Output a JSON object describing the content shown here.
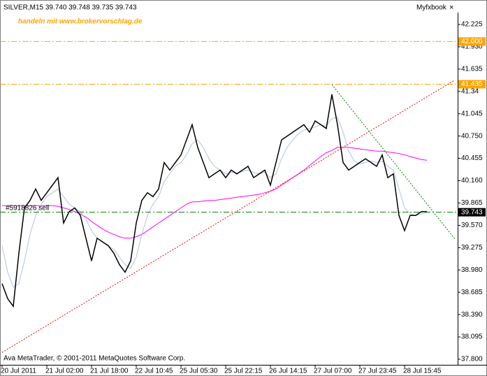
{
  "chart_data": {
    "type": "line",
    "title": "SILVER,M15  39.740 39.748 39.735 39.743",
    "subtitle": "handeln mit www.brokervorschlag.de",
    "indicator": "Myfxbook",
    "close_button": "×",
    "footer": "Ava MetaTrader, © 2001-2011 MetaQuotes Software Corp.",
    "categories": [
      "20 Jul 2011",
      null,
      null,
      null,
      null,
      null,
      null,
      null,
      "21 Jul 02:00",
      null,
      null,
      null,
      null,
      null,
      null,
      null,
      "21 Jul 18:00",
      null,
      null,
      null,
      null,
      null,
      null,
      null,
      "22 Jul 10:45",
      null,
      null,
      null,
      null,
      null,
      null,
      null,
      "25 Jul 05:30",
      null,
      null,
      null,
      null,
      null,
      null,
      null,
      "25 Jul 22:15",
      null,
      null,
      null,
      null,
      null,
      null,
      null,
      "26 Jul 14:15",
      null,
      null,
      null,
      null,
      null,
      null,
      null,
      "27 Jul 07:00",
      null,
      null,
      null,
      null,
      null,
      null,
      null,
      "27 Jul 23:45",
      null,
      null,
      null,
      null,
      null,
      null,
      null,
      "28 Jul 15:45",
      null,
      null,
      null,
      null,
      null,
      null,
      null,
      null,
      null
    ],
    "series": [
      {
        "color": "#000000",
        "values": [
          38.8,
          38.6,
          38.5,
          39.2,
          39.8,
          39.9,
          40.05,
          39.9,
          40.0,
          40.1,
          40.2,
          39.6,
          39.75,
          39.8,
          39.7,
          39.4,
          39.1,
          39.4,
          39.35,
          39.3,
          39.2,
          39.05,
          38.95,
          39.1,
          39.6,
          39.9,
          40.0,
          39.95,
          40.05,
          40.4,
          40.3,
          40.4,
          40.5,
          40.7,
          40.9,
          40.6,
          40.4,
          40.2,
          40.25,
          40.3,
          40.2,
          40.3,
          40.25,
          40.3,
          40.35,
          40.2,
          40.25,
          40.3,
          40.1,
          40.4,
          40.7,
          40.75,
          40.8,
          40.85,
          40.9,
          40.8,
          40.95,
          40.9,
          40.85,
          41.3,
          40.9,
          40.4,
          40.3,
          40.35,
          40.4,
          40.45,
          40.4,
          40.35,
          40.5,
          40.2,
          40.25,
          39.7,
          39.5,
          39.7,
          39.7,
          39.75,
          39.75,
          null,
          null,
          null,
          null,
          null
        ]
      },
      {
        "color": "#b0c4de",
        "values": [
          39.3,
          38.95,
          38.75,
          38.8,
          39.1,
          39.45,
          39.7,
          39.85,
          39.95,
          40.0,
          40.05,
          39.95,
          39.85,
          39.8,
          39.75,
          39.65,
          39.5,
          39.4,
          39.35,
          39.3,
          39.25,
          39.15,
          39.05,
          39.0,
          39.15,
          39.45,
          39.7,
          39.85,
          39.95,
          40.15,
          40.25,
          40.35,
          40.4,
          40.5,
          40.65,
          40.7,
          40.6,
          40.45,
          40.35,
          40.3,
          40.25,
          40.27,
          40.26,
          40.28,
          40.3,
          40.27,
          40.25,
          40.27,
          40.2,
          40.25,
          40.45,
          40.6,
          40.7,
          40.78,
          40.83,
          40.85,
          40.87,
          40.9,
          40.88,
          40.98,
          41.0,
          40.8,
          40.55,
          40.42,
          40.38,
          40.4,
          40.42,
          40.4,
          40.42,
          40.35,
          40.3,
          40.05,
          39.8,
          39.72,
          39.7,
          39.72,
          39.74,
          null,
          null,
          null,
          null,
          null
        ]
      },
      {
        "color": "#ff00ff",
        "values": [
          39.83,
          39.83,
          39.83,
          39.83,
          39.83,
          39.83,
          39.83,
          39.83,
          39.83,
          39.83,
          39.82,
          39.8,
          39.78,
          39.75,
          39.72,
          39.68,
          39.62,
          39.57,
          39.52,
          39.48,
          39.45,
          39.42,
          39.4,
          39.4,
          39.42,
          39.45,
          39.5,
          39.55,
          39.6,
          39.65,
          39.7,
          39.75,
          39.8,
          39.85,
          39.88,
          39.88,
          39.89,
          39.9,
          39.9,
          39.91,
          39.92,
          39.93,
          39.94,
          39.95,
          39.96,
          39.97,
          39.98,
          40.0,
          40.02,
          40.05,
          40.1,
          40.15,
          40.2,
          40.25,
          40.3,
          40.36,
          40.42,
          40.48,
          40.53,
          40.56,
          40.6,
          40.6,
          40.6,
          40.59,
          40.58,
          40.57,
          40.56,
          40.55,
          40.55,
          40.54,
          40.53,
          40.52,
          40.5,
          40.48,
          40.46,
          40.44,
          40.43,
          null,
          null,
          null,
          null,
          null
        ]
      }
    ],
    "ylim": [
      37.726,
      42.382
    ],
    "yticks": [
      42.225,
      {
        "value": 41.93,
        "label": "41.930"
      },
      41.635,
      41.34,
      41.045,
      {
        "value": 40.75,
        "label": "40.750"
      },
      40.455,
      {
        "value": 40.16,
        "label": "40.160"
      },
      39.865,
      {
        "value": 39.57,
        "label": "39.570"
      },
      39.275,
      {
        "value": 38.98,
        "label": "38.980"
      },
      38.685,
      {
        "value": 38.39,
        "label": "38.390"
      },
      38.095,
      {
        "value": 37.8,
        "label": "37.800"
      }
    ],
    "hlines": [
      {
        "value": 42.0,
        "label": "42.000",
        "color": "#ffa500"
      },
      {
        "value": 41.435,
        "label": "41.435",
        "color": "#ffa500"
      },
      {
        "value": 39.743,
        "label": "39.743",
        "color": "#008000",
        "order": "#5918826 sell"
      }
    ],
    "trendlines": [
      {
        "color": "#ff0000",
        "x": [
          0,
          81
        ],
        "values": [
          37.89,
          41.49
        ]
      },
      {
        "color": "#008000",
        "x": [
          59,
          81
        ],
        "values": [
          41.43,
          39.39
        ]
      }
    ]
  }
}
